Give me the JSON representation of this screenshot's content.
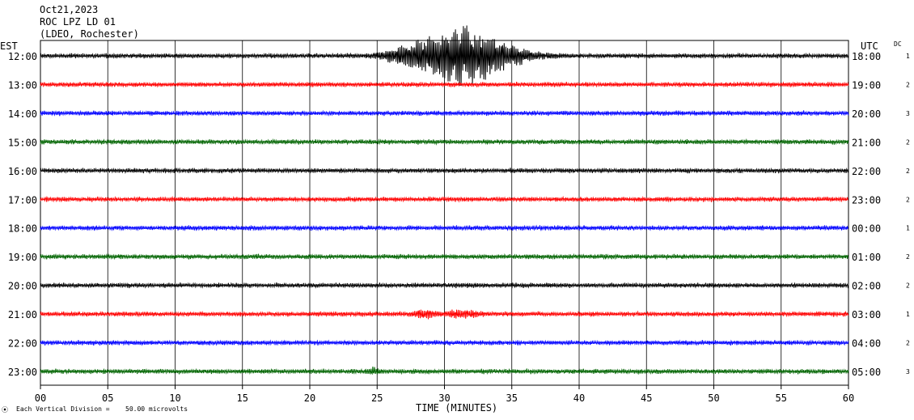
{
  "header": {
    "line1": "Oct21,2023",
    "line2": "ROC LPZ LD 01",
    "line3": "(LDEO, Rochester)"
  },
  "left_axis_label": "EST",
  "right_axis_label": "UTC",
  "dc_label": "DC",
  "footer": {
    "mark": "⦿",
    "vertical_division": "Each Vertical Division =",
    "amplitude": "50.00 microvolts"
  },
  "chart_data": {
    "type": "line",
    "xlabel": "TIME (MINUTES)",
    "xlim": [
      0,
      60
    ],
    "xticks": [
      "00",
      "05",
      "10",
      "15",
      "20",
      "25",
      "30",
      "35",
      "40",
      "45",
      "50",
      "55",
      "60"
    ],
    "trace_colors": [
      "#000000",
      "#ff0000",
      "#0000ff",
      "#006400"
    ],
    "rows": [
      {
        "est": "12:00",
        "utc": "18:00",
        "dc": "1",
        "color": "#000000",
        "bursts": [
          {
            "t": 31.5,
            "w": 3.5,
            "a": 16
          },
          {
            "t": 27.5,
            "w": 2.0,
            "a": 3
          }
        ]
      },
      {
        "est": "13:00",
        "utc": "19:00",
        "dc": "2",
        "color": "#ff0000",
        "bursts": []
      },
      {
        "est": "14:00",
        "utc": "20:00",
        "dc": "3",
        "color": "#0000ff",
        "bursts": []
      },
      {
        "est": "15:00",
        "utc": "21:00",
        "dc": "2",
        "color": "#006400",
        "bursts": []
      },
      {
        "est": "16:00",
        "utc": "22:00",
        "dc": "2",
        "color": "#000000",
        "bursts": []
      },
      {
        "est": "17:00",
        "utc": "23:00",
        "dc": "2",
        "color": "#ff0000",
        "bursts": []
      },
      {
        "est": "18:00",
        "utc": "00:00",
        "dc": "1",
        "color": "#0000ff",
        "bursts": []
      },
      {
        "est": "19:00",
        "utc": "01:00",
        "dc": "2",
        "color": "#006400",
        "bursts": []
      },
      {
        "est": "20:00",
        "utc": "02:00",
        "dc": "2",
        "color": "#000000",
        "bursts": []
      },
      {
        "est": "21:00",
        "utc": "03:00",
        "dc": "1",
        "color": "#ff0000",
        "bursts": [
          {
            "t": 28.5,
            "w": 0.8,
            "a": 2
          },
          {
            "t": 31.5,
            "w": 1.2,
            "a": 2
          }
        ]
      },
      {
        "est": "22:00",
        "utc": "04:00",
        "dc": "2",
        "color": "#0000ff",
        "bursts": []
      },
      {
        "est": "23:00",
        "utc": "05:00",
        "dc": "3",
        "color": "#006400",
        "bursts": [
          {
            "t": 24.7,
            "w": 0.4,
            "a": 1.5
          }
        ]
      }
    ]
  }
}
